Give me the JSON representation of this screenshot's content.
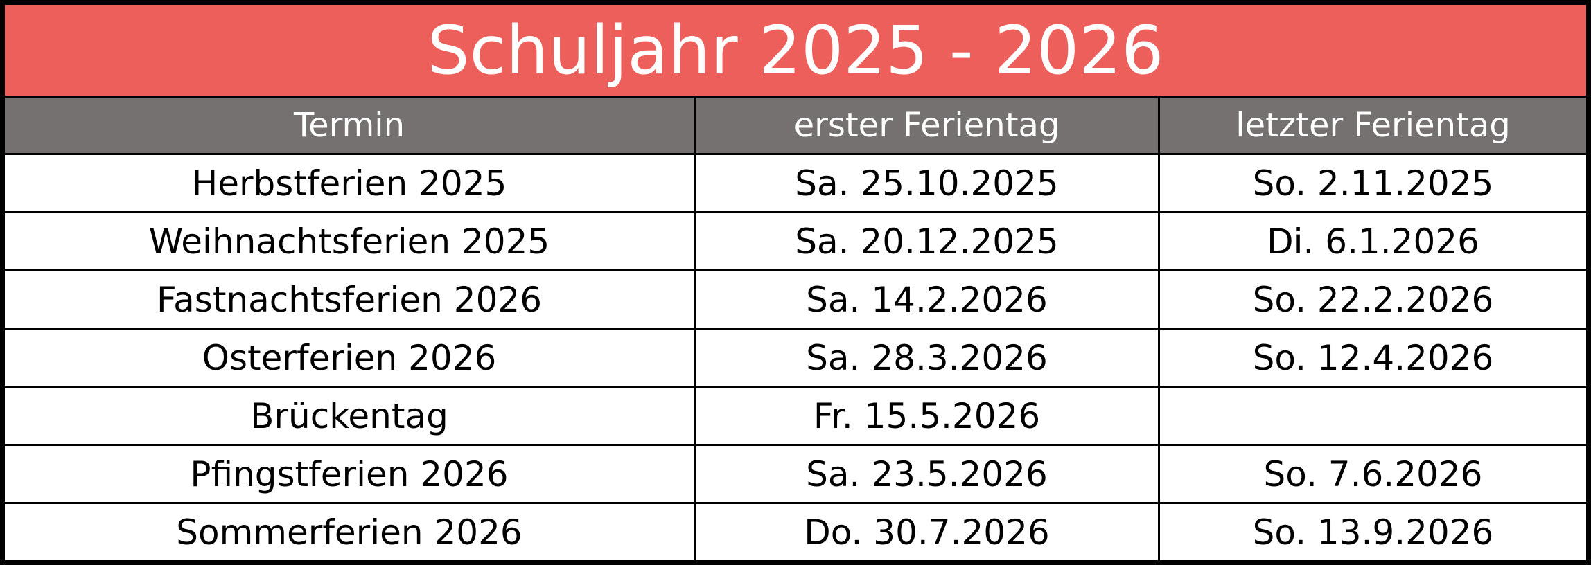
{
  "title": "Schuljahr 2025 - 2026",
  "table": {
    "header": [
      "Termin",
      "erster Ferientag",
      "letzter Ferientag"
    ],
    "rows": [
      [
        "Herbstferien 2025",
        "Sa. 25.10.2025",
        "So. 2.11.2025"
      ],
      [
        "Weihnachtsferien 2025",
        "Sa. 20.12.2025",
        "Di. 6.1.2026"
      ],
      [
        "Fastnachtsferien 2026",
        "Sa. 14.2.2026",
        "So. 22.2.2026"
      ],
      [
        "Osterferien 2026",
        "Sa. 28.3.2026",
        "So. 12.4.2026"
      ],
      [
        "Brückentag",
        "Fr. 15.5.2026",
        null
      ],
      [
        "Pfingstferien 2026",
        "Sa. 23.5.2026",
        "So. 7.6.2026"
      ],
      [
        "Sommerferien 2026",
        "Do. 30.7.2026",
        "So. 13.9.2026"
      ]
    ]
  }
}
